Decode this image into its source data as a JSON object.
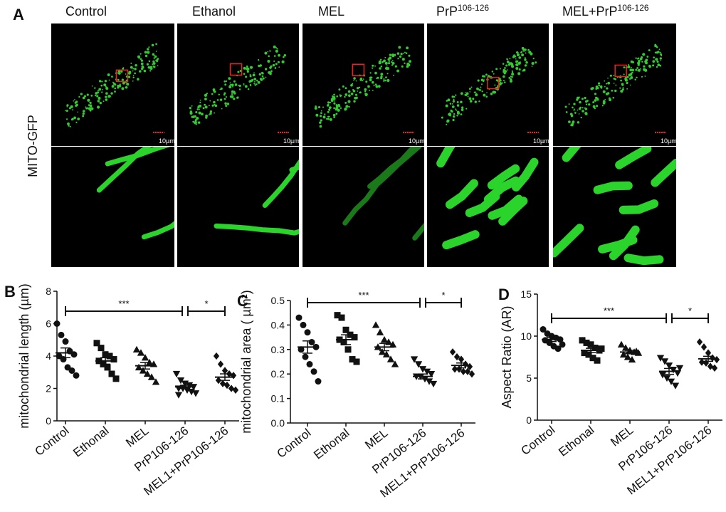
{
  "panel_a": {
    "label": "A",
    "row_label": "MITO-GFP",
    "columns": [
      [
        "Control"
      ],
      [
        "Ethanol"
      ],
      [
        "MEL"
      ],
      [
        "PrP",
        "106-126"
      ],
      [
        "MEL+PrP",
        "106-126"
      ]
    ],
    "scale_bar": "10µm"
  },
  "chart_data": [
    {
      "type": "dot",
      "panel_label": "B",
      "y_label": "mitochondrial length (µm)",
      "categories": [
        "Control",
        "Ethonal",
        "MEL",
        "PrP106-126",
        "MEL1+PrP106-126"
      ],
      "markers": [
        "circle",
        "square",
        "triangle-up",
        "triangle-down",
        "diamond"
      ],
      "color": "#111111",
      "values": [
        [
          6.0,
          5.3,
          4.9,
          4.3,
          4.1,
          4.0,
          3.8,
          3.3,
          3.1,
          2.8
        ],
        [
          4.8,
          4.5,
          4.1,
          4.0,
          3.8,
          3.7,
          3.5,
          3.3,
          2.9,
          2.6
        ],
        [
          4.4,
          4.2,
          3.9,
          3.6,
          3.5,
          3.3,
          3.1,
          2.9,
          2.7,
          2.4
        ],
        [
          2.9,
          2.5,
          2.3,
          2.2,
          2.1,
          2.0,
          2.0,
          1.9,
          1.8,
          1.7,
          1.6
        ],
        [
          4.0,
          3.5,
          3.1,
          2.9,
          2.8,
          2.5,
          2.3,
          2.2,
          2.0,
          1.9
        ]
      ],
      "means": [
        4.2,
        3.7,
        3.4,
        2.1,
        2.7
      ],
      "sem": [
        0.3,
        0.2,
        0.2,
        0.1,
        0.2
      ],
      "ylim": [
        0,
        8
      ],
      "yticks": [
        0,
        2,
        4,
        6,
        8
      ],
      "annotations": [
        {
          "from": 0,
          "to": 3,
          "text": "***"
        },
        {
          "from": 3,
          "to": 4,
          "text": "*"
        }
      ]
    },
    {
      "type": "dot",
      "panel_label": "C",
      "y_label": "mitochondrial area ( µm²)",
      "categories": [
        "Control",
        "Ethonal",
        "MEL",
        "PrP106-126",
        "MEL1+PrP106-126"
      ],
      "markers": [
        "circle",
        "square",
        "triangle-up",
        "triangle-down",
        "diamond"
      ],
      "color": "#111111",
      "values": [
        [
          0.43,
          0.4,
          0.37,
          0.33,
          0.31,
          0.3,
          0.27,
          0.24,
          0.21,
          0.17
        ],
        [
          0.44,
          0.43,
          0.38,
          0.36,
          0.35,
          0.34,
          0.33,
          0.3,
          0.26,
          0.25
        ],
        [
          0.4,
          0.37,
          0.34,
          0.33,
          0.32,
          0.31,
          0.29,
          0.28,
          0.26,
          0.24
        ],
        [
          0.26,
          0.24,
          0.22,
          0.21,
          0.2,
          0.19,
          0.19,
          0.18,
          0.17,
          0.16
        ],
        [
          0.29,
          0.27,
          0.26,
          0.24,
          0.23,
          0.22,
          0.22,
          0.21,
          0.21,
          0.2
        ]
      ],
      "means": [
        0.31,
        0.34,
        0.31,
        0.19,
        0.235
      ],
      "sem": [
        0.025,
        0.02,
        0.015,
        0.01,
        0.01
      ],
      "ylim": [
        0,
        0.5
      ],
      "yticks": [
        {
          "value": 0,
          "label": "0.0"
        },
        0.1,
        0.2,
        0.3,
        0.4,
        0.5
      ],
      "annotations": [
        {
          "from": 0,
          "to": 3,
          "text": "***"
        },
        {
          "from": 3,
          "to": 4,
          "text": "*"
        }
      ]
    },
    {
      "type": "dot",
      "panel_label": "D",
      "y_label": "Aspect Ratio (AR)",
      "categories": [
        "Control",
        "Ethonal",
        "MEL",
        "PrP106-126",
        "MEL1+PrP106-126"
      ],
      "markers": [
        "circle",
        "square",
        "triangle-up",
        "triangle-down",
        "diamond"
      ],
      "color": "#111111",
      "values": [
        [
          10.8,
          10.3,
          10.0,
          9.8,
          9.6,
          9.5,
          9.2,
          8.8,
          8.5,
          9.0
        ],
        [
          9.5,
          9.2,
          9.0,
          8.6,
          8.3,
          8.0,
          7.8,
          7.4,
          7.1,
          8.5
        ],
        [
          9.0,
          8.6,
          8.3,
          8.1,
          8.0,
          7.8,
          7.5,
          7.2,
          8.2
        ],
        [
          7.4,
          7.0,
          6.5,
          6.0,
          5.6,
          5.4,
          5.0,
          4.6,
          4.1,
          6.2
        ],
        [
          9.3,
          8.7,
          8.0,
          7.4,
          7.2,
          6.9,
          6.8,
          6.4,
          6.2
        ]
      ],
      "means": [
        9.6,
        8.3,
        8.1,
        5.8,
        7.3
      ],
      "sem": [
        0.25,
        0.25,
        0.2,
        0.35,
        0.3
      ],
      "ylim": [
        0,
        15
      ],
      "yticks": [
        0,
        5,
        10,
        15
      ],
      "annotations": [
        {
          "from": 0,
          "to": 3,
          "text": "***"
        },
        {
          "from": 3,
          "to": 4,
          "text": "*"
        }
      ]
    }
  ]
}
